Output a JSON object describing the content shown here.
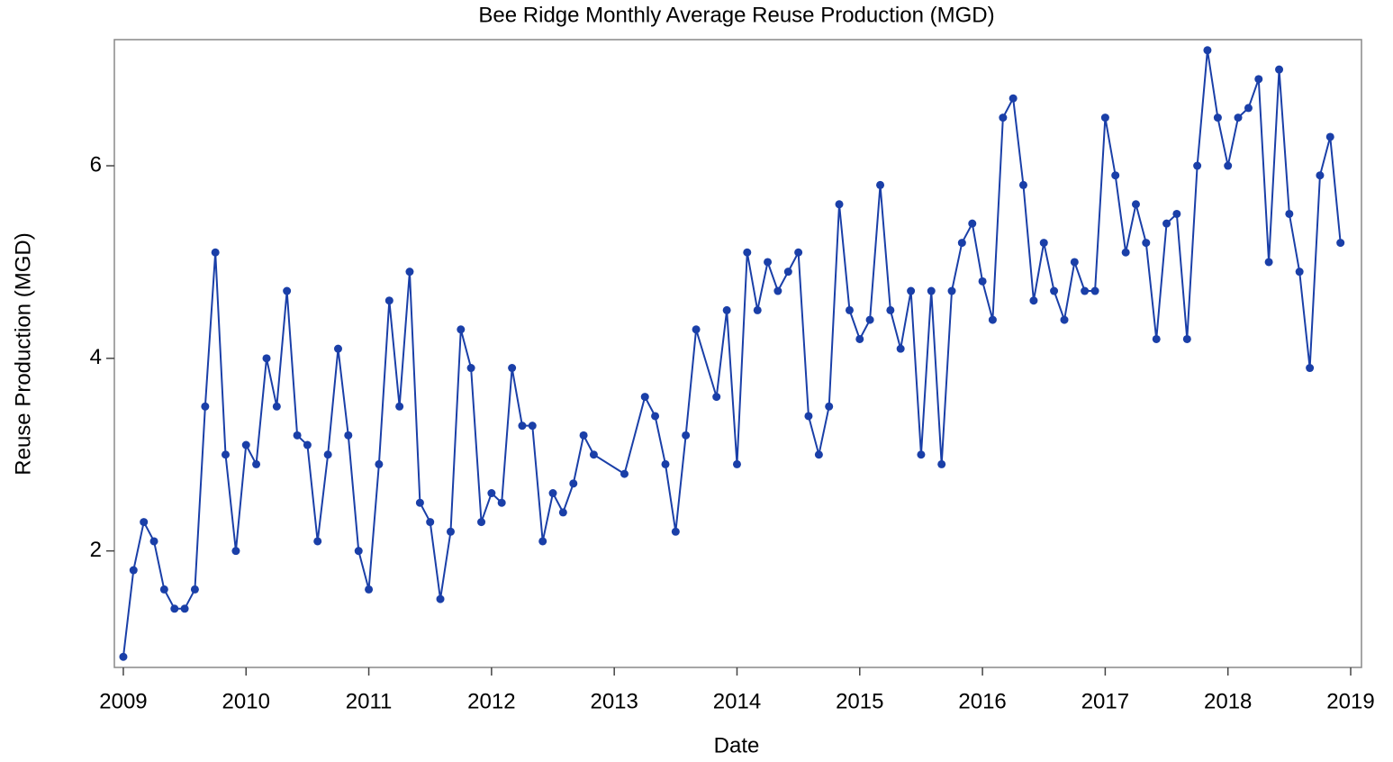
{
  "chart_data": {
    "type": "line",
    "title": "Bee Ridge Monthly Average Reuse Production (MGD)",
    "xlabel": "Date",
    "ylabel": "Reuse Production (MGD)",
    "color": "#1a3fa8",
    "x": [
      2009,
      2009.083,
      2009.167,
      2009.25,
      2009.333,
      2009.417,
      2009.5,
      2009.583,
      2009.667,
      2009.75,
      2009.833,
      2009.917,
      2010,
      2010.083,
      2010.167,
      2010.25,
      2010.333,
      2010.417,
      2010.5,
      2010.583,
      2010.667,
      2010.75,
      2010.833,
      2010.917,
      2011,
      2011.083,
      2011.167,
      2011.25,
      2011.333,
      2011.417,
      2011.5,
      2011.583,
      2011.667,
      2011.75,
      2011.833,
      2011.917,
      2012,
      2012.083,
      2012.167,
      2012.25,
      2012.333,
      2012.417,
      2012.5,
      2012.583,
      2012.667,
      2012.75,
      2012.833,
      2013.083,
      2013.25,
      2013.333,
      2013.417,
      2013.5,
      2013.583,
      2013.667,
      2013.833,
      2013.917,
      2014,
      2014.083,
      2014.167,
      2014.25,
      2014.333,
      2014.417,
      2014.5,
      2014.583,
      2014.667,
      2014.75,
      2014.833,
      2014.917,
      2015,
      2015.083,
      2015.167,
      2015.25,
      2015.333,
      2015.417,
      2015.5,
      2015.583,
      2015.667,
      2015.75,
      2015.833,
      2015.917,
      2016,
      2016.083,
      2016.167,
      2016.25,
      2016.333,
      2016.417,
      2016.5,
      2016.583,
      2016.667,
      2016.75,
      2016.833,
      2016.917,
      2017,
      2017.083,
      2017.167,
      2017.25,
      2017.333,
      2017.417,
      2017.5,
      2017.583,
      2017.667,
      2017.75,
      2017.833,
      2017.917,
      2018,
      2018.083,
      2018.167,
      2018.25,
      2018.333,
      2018.417,
      2018.5,
      2018.583,
      2018.667,
      2018.75,
      2018.833,
      2018.917
    ],
    "values": [
      0.9,
      1.8,
      2.3,
      2.1,
      1.6,
      1.4,
      1.4,
      1.6,
      3.5,
      5.1,
      3.0,
      2.0,
      3.1,
      2.9,
      4.0,
      3.5,
      4.7,
      3.2,
      3.1,
      2.1,
      3.0,
      4.1,
      3.2,
      2.0,
      1.6,
      2.9,
      4.6,
      3.5,
      4.9,
      2.5,
      2.3,
      1.5,
      2.2,
      4.3,
      3.9,
      2.3,
      2.6,
      2.5,
      3.9,
      3.3,
      3.3,
      2.1,
      2.6,
      2.4,
      2.7,
      3.2,
      3.0,
      2.8,
      3.6,
      3.4,
      2.9,
      2.2,
      3.2,
      4.3,
      3.6,
      4.5,
      2.9,
      5.1,
      4.5,
      5.0,
      4.7,
      4.9,
      5.1,
      3.4,
      3.0,
      3.5,
      5.6,
      4.5,
      4.2,
      4.4,
      5.8,
      4.5,
      4.1,
      4.7,
      3.0,
      4.7,
      2.9,
      4.7,
      5.2,
      5.4,
      4.8,
      4.4,
      6.5,
      6.7,
      5.8,
      4.6,
      5.2,
      4.7,
      4.4,
      5.0,
      4.7,
      4.7,
      6.5,
      5.9,
      5.1,
      5.6,
      5.2,
      4.2,
      5.4,
      5.5,
      4.2,
      6.0,
      7.2,
      6.5,
      6.0,
      6.5,
      6.6,
      6.9,
      5.0,
      7.0,
      5.5,
      4.9,
      3.9,
      5.9,
      6.3,
      5.2
    ],
    "xlim": [
      2008.927,
      2019.088
    ],
    "xticks": [
      2009,
      2010,
      2011,
      2012,
      2013,
      2014,
      2015,
      2016,
      2017,
      2018,
      2019
    ],
    "ylim": [
      0.79,
      7.31
    ],
    "yticks": [
      2,
      4,
      6
    ]
  }
}
